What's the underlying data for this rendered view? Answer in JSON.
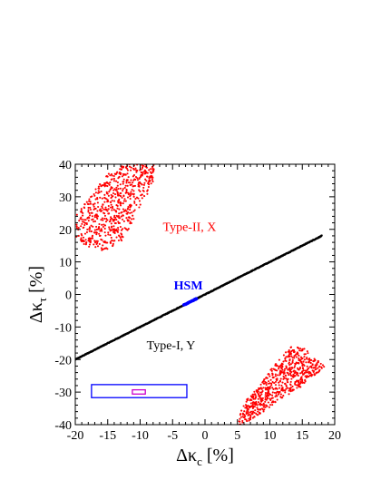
{
  "chart_data": {
    "type": "scatter",
    "xlabel": {
      "symbol": "Δκ",
      "sub": "c",
      "unit": "[%]"
    },
    "ylabel": {
      "symbol": "Δκ",
      "sub": "τ",
      "unit": "[%]"
    },
    "xlim": [
      -20,
      20
    ],
    "ylim": [
      -40,
      40
    ],
    "x_ticks": [
      "-20",
      "-15",
      "-10",
      "-5",
      "0",
      "5",
      "10",
      "15",
      "20"
    ],
    "y_ticks": [
      "-40",
      "-30",
      "-20",
      "-10",
      "0",
      "10",
      "20",
      "30",
      "40"
    ],
    "x_tick_values": [
      -20,
      -15,
      -10,
      -5,
      0,
      5,
      10,
      15,
      20
    ],
    "y_tick_values": [
      -40,
      -30,
      -20,
      -10,
      0,
      10,
      20,
      30,
      40
    ],
    "grid": false,
    "colors": {
      "type1": "#000000",
      "type2": "#ff0000",
      "hsm": "#0000ff",
      "box_outer": "#0000ff",
      "box_inner": "#cc00cc"
    },
    "annotations": [
      {
        "id": "type2",
        "text": "Type-II, X",
        "x": -6.5,
        "y": 19.5,
        "color": "#ff0000"
      },
      {
        "id": "hsm",
        "text": "HSM",
        "x": -4.8,
        "y": 1.6,
        "color": "#0000ff"
      },
      {
        "id": "type1",
        "text": "Type-I, Y",
        "x": -9.0,
        "y": -16.8,
        "color": "#000000"
      }
    ],
    "series": [
      {
        "name": "Type-I, Y",
        "kind": "line",
        "x": [
          -20,
          18
        ],
        "y": [
          -20,
          18
        ],
        "color": "#000000"
      },
      {
        "name": "HSM",
        "kind": "line",
        "x": [
          -3.3,
          -1.3
        ],
        "y": [
          -3.3,
          -1.3
        ],
        "color": "#0000ff"
      },
      {
        "name": "Type-II, X",
        "kind": "region",
        "color": "#ff0000",
        "outline": [
          [
            -20,
            17
          ],
          [
            -20,
            24
          ],
          [
            -17,
            32
          ],
          [
            -15,
            37
          ],
          [
            -12.5,
            40
          ],
          [
            -7.5,
            40
          ],
          [
            -8.2,
            33
          ],
          [
            -10,
            27
          ],
          [
            -11.5,
            21
          ],
          [
            -13,
            16
          ],
          [
            -15,
            13
          ],
          [
            -17.5,
            14
          ]
        ]
      },
      {
        "name": "Type-II, X",
        "kind": "region",
        "color": "#ff0000",
        "outline": [
          [
            5,
            -40
          ],
          [
            6,
            -33
          ],
          [
            8,
            -29
          ],
          [
            10.5,
            -22
          ],
          [
            13.2,
            -16
          ],
          [
            15.3,
            -16.5
          ],
          [
            17.2,
            -20
          ],
          [
            18.5,
            -22
          ],
          [
            17.8,
            -23.5
          ],
          [
            16,
            -26
          ],
          [
            14.5,
            -29
          ],
          [
            11,
            -33
          ],
          [
            8.5,
            -37
          ],
          [
            6.2,
            -40
          ]
        ]
      }
    ],
    "rectangles": [
      {
        "id": "outer",
        "x": [
          -17.5,
          -2.8
        ],
        "y": [
          -31.7,
          -27.7
        ],
        "color": "#0000ff"
      },
      {
        "id": "inner",
        "x": [
          -11.2,
          -9.2
        ],
        "y": [
          -30.6,
          -29.3
        ],
        "color": "#cc00cc"
      }
    ]
  }
}
